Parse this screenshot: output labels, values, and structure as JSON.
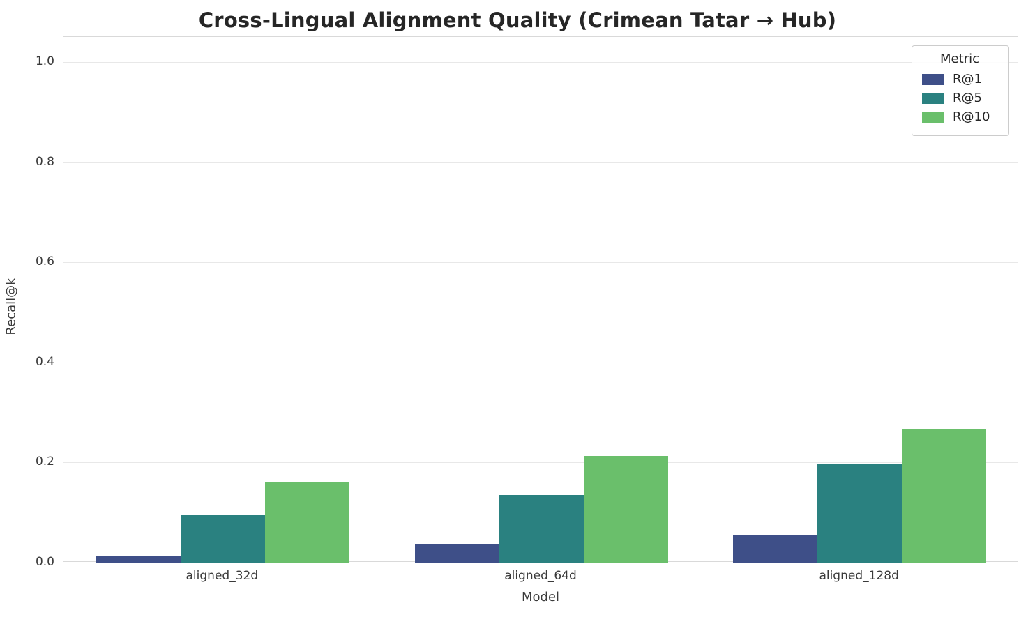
{
  "chart_data": {
    "type": "bar",
    "title": "Cross-Lingual Alignment Quality (Crimean Tatar → Hub)",
    "xlabel": "Model",
    "ylabel": "Recall@k",
    "categories": [
      "aligned_32d",
      "aligned_64d",
      "aligned_128d"
    ],
    "series": [
      {
        "name": "R@1",
        "color": "#3e4f88",
        "values": [
          0.013,
          0.037,
          0.054
        ]
      },
      {
        "name": "R@5",
        "color": "#2a8180",
        "values": [
          0.095,
          0.135,
          0.196
        ]
      },
      {
        "name": "R@10",
        "color": "#6abf6b",
        "values": [
          0.16,
          0.213,
          0.267
        ]
      }
    ],
    "ylim": [
      0,
      1.05
    ],
    "yticks": [
      "0.0",
      "0.2",
      "0.4",
      "0.6",
      "0.8",
      "1.0"
    ],
    "legend_title": "Metric",
    "legend_position": "upper right",
    "grid": true
  }
}
